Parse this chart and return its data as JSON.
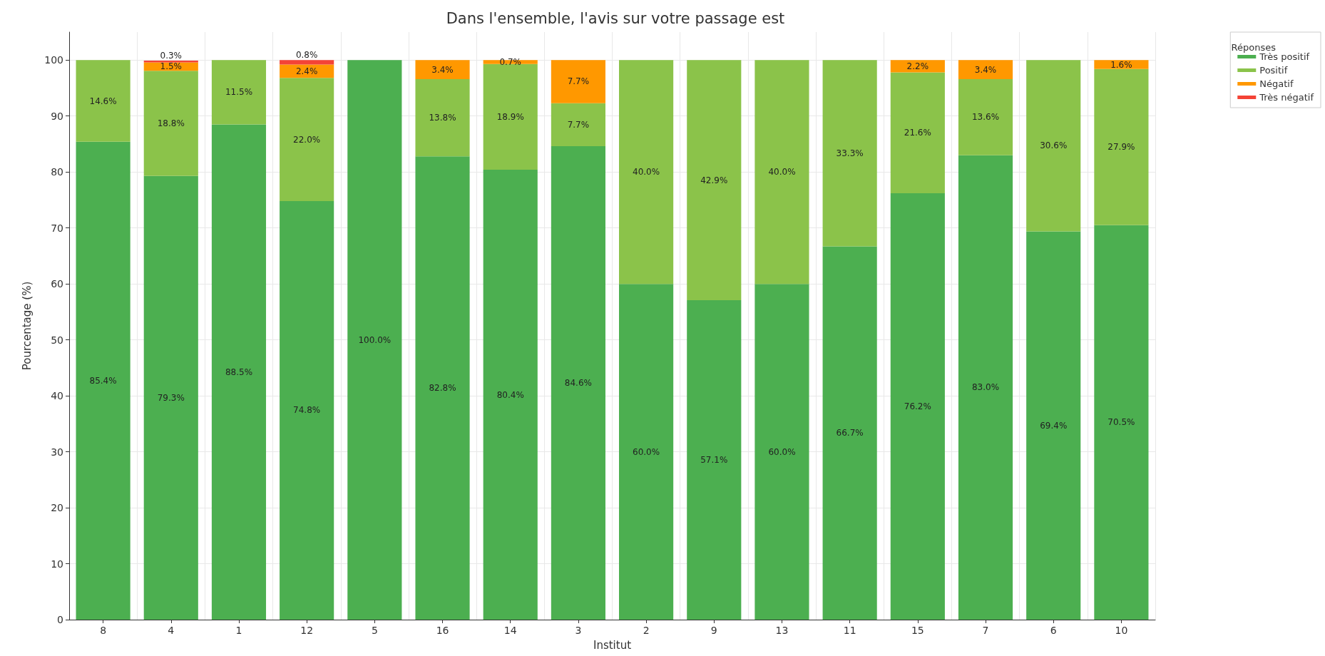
{
  "chart_data": {
    "type": "bar",
    "stacked": true,
    "title": "Dans l'ensemble, l'avis sur votre passage est",
    "xlabel": "Institut",
    "ylabel": "Pourcentage (%)",
    "legend_title": "Réponses",
    "legend": "top right",
    "grid": true,
    "categories": [
      "8",
      "4",
      "1",
      "12",
      "5",
      "16",
      "14",
      "3",
      "2",
      "9",
      "13",
      "11",
      "15",
      "7",
      "6",
      "10"
    ],
    "ylim": [
      0,
      105
    ],
    "yticks": [
      0,
      10,
      20,
      30,
      40,
      50,
      60,
      70,
      80,
      90,
      100
    ],
    "series": [
      {
        "name": "Très positif",
        "color": "#4caf50",
        "values": [
          85.4,
          79.3,
          88.5,
          74.8,
          100.0,
          82.8,
          80.4,
          84.6,
          60.0,
          57.1,
          60.0,
          66.7,
          76.2,
          83.0,
          69.4,
          70.5
        ],
        "value_labels": [
          "85.4%",
          "79.3%",
          "88.5%",
          "74.8%",
          "100.0%",
          "82.8%",
          "80.4%",
          "84.6%",
          "60.0%",
          "57.1%",
          "60.0%",
          "66.7%",
          "76.2%",
          "83.0%",
          "69.4%",
          "70.5%"
        ]
      },
      {
        "name": "Positif",
        "color": "#8bc34a",
        "values": [
          14.6,
          18.8,
          11.5,
          22.0,
          0,
          13.8,
          18.9,
          7.7,
          40.0,
          42.9,
          40.0,
          33.3,
          21.6,
          13.6,
          30.6,
          27.9
        ],
        "value_labels": [
          "14.6%",
          "18.8%",
          "11.5%",
          "22.0%",
          null,
          "13.8%",
          "18.9%",
          "7.7%",
          "40.0%",
          "42.9%",
          "40.0%",
          "33.3%",
          "21.6%",
          "13.6%",
          "30.6%",
          "27.9%"
        ]
      },
      {
        "name": "Négatif",
        "color": "#ff9800",
        "values": [
          0,
          1.5,
          0,
          2.4,
          0,
          3.4,
          0.7,
          7.7,
          0,
          0,
          0,
          0,
          2.2,
          3.4,
          0,
          1.6
        ],
        "value_labels": [
          null,
          "1.5%",
          null,
          "2.4%",
          null,
          "3.4%",
          "0.7%",
          "7.7%",
          null,
          null,
          null,
          null,
          "2.2%",
          "3.4%",
          null,
          "1.6%"
        ]
      },
      {
        "name": "Très négatif",
        "color": "#f44336",
        "values": [
          0,
          0.3,
          0,
          0.8,
          0,
          0,
          0,
          0,
          0,
          0,
          0,
          0,
          0,
          0,
          0,
          0
        ],
        "value_labels": [
          null,
          "0.3%",
          null,
          "0.8%",
          null,
          null,
          null,
          null,
          null,
          null,
          null,
          null,
          null,
          null,
          null,
          null
        ]
      }
    ]
  }
}
